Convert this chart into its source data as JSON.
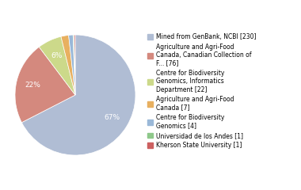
{
  "labels": [
    "Mined from GenBank, NCBI [230]",
    "Agriculture and Agri-Food\nCanada, Canadian Collection of\nF... [76]",
    "Centre for Biodiversity\nGenomics, Informatics\nDepartment [22]",
    "Agriculture and Agri-Food\nCanada [7]",
    "Centre for Biodiversity\nGenomics [4]",
    "Universidad de los Andes [1]",
    "Kherson State University [1]"
  ],
  "values": [
    230,
    76,
    22,
    7,
    4,
    1,
    1
  ],
  "colors": [
    "#b0bdd4",
    "#d4897e",
    "#ccd98a",
    "#e8b060",
    "#9ab8d8",
    "#8ec88a",
    "#cc6060"
  ],
  "autopct_threshold": 3,
  "figsize": [
    3.8,
    2.4
  ],
  "dpi": 100,
  "bg_color": "#ffffff"
}
